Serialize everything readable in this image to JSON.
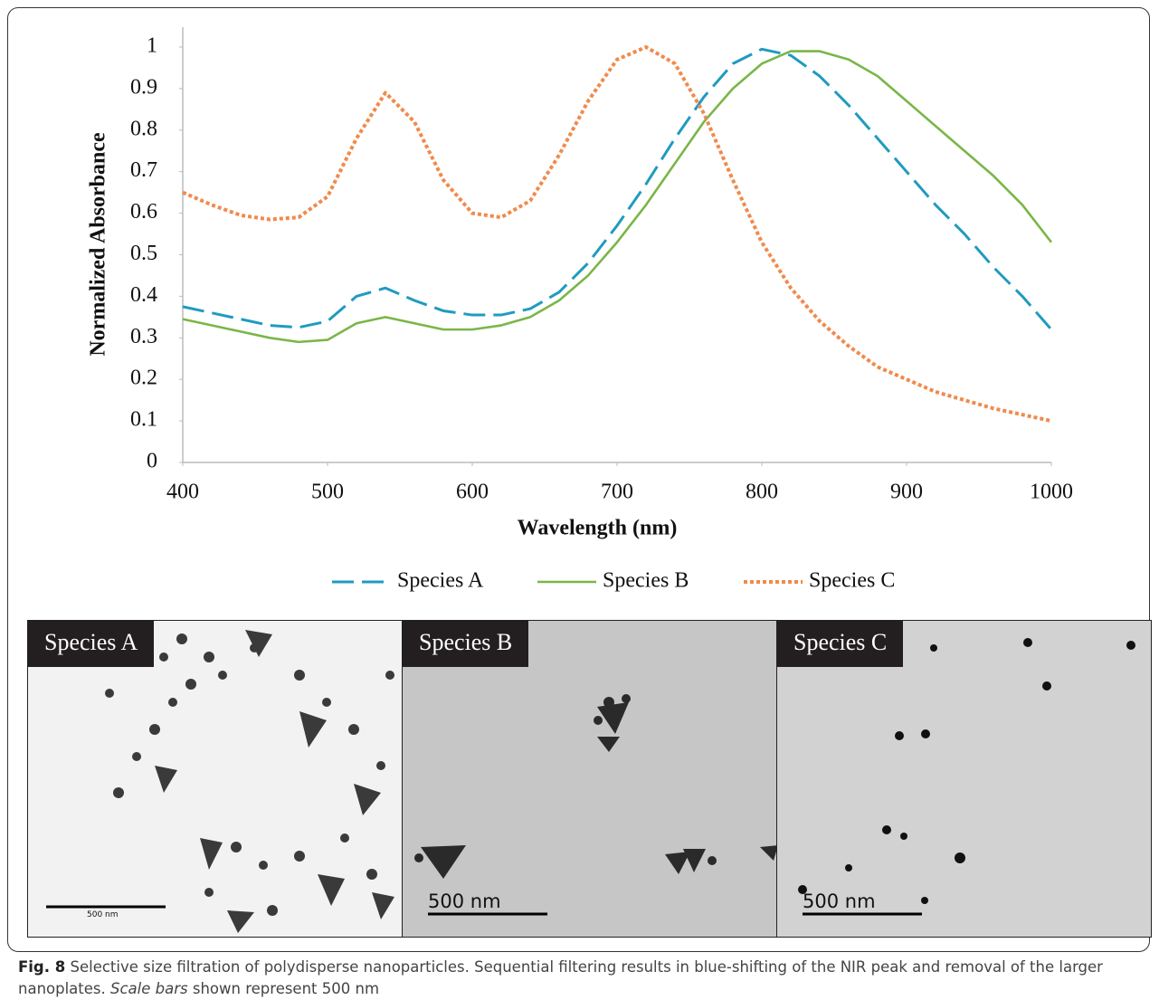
{
  "chart_data": {
    "type": "line",
    "xlabel": "Wavelength (nm)",
    "ylabel": "Normalized Absorbance",
    "x": [
      400,
      420,
      440,
      460,
      480,
      500,
      520,
      540,
      560,
      580,
      600,
      620,
      640,
      660,
      680,
      700,
      720,
      740,
      760,
      780,
      800,
      820,
      840,
      860,
      880,
      900,
      920,
      940,
      960,
      980,
      1000
    ],
    "series": [
      {
        "name": "Species A",
        "color": "#1f9bbf",
        "style": "dashed",
        "values": [
          0.375,
          0.36,
          0.345,
          0.33,
          0.325,
          0.34,
          0.4,
          0.42,
          0.39,
          0.365,
          0.355,
          0.355,
          0.37,
          0.41,
          0.48,
          0.57,
          0.67,
          0.78,
          0.88,
          0.96,
          0.995,
          0.98,
          0.93,
          0.86,
          0.78,
          0.7,
          0.62,
          0.55,
          0.47,
          0.4,
          0.32
        ]
      },
      {
        "name": "Species B",
        "color": "#7ab648",
        "style": "solid",
        "values": [
          0.345,
          0.33,
          0.315,
          0.3,
          0.29,
          0.295,
          0.335,
          0.35,
          0.335,
          0.32,
          0.32,
          0.33,
          0.35,
          0.39,
          0.45,
          0.53,
          0.62,
          0.72,
          0.82,
          0.9,
          0.96,
          0.99,
          0.99,
          0.97,
          0.93,
          0.87,
          0.81,
          0.75,
          0.69,
          0.62,
          0.53
        ]
      },
      {
        "name": "Species C",
        "color": "#f08a4b",
        "style": "dotted",
        "values": [
          0.65,
          0.62,
          0.595,
          0.585,
          0.59,
          0.64,
          0.78,
          0.89,
          0.82,
          0.68,
          0.6,
          0.59,
          0.63,
          0.74,
          0.87,
          0.97,
          1.0,
          0.96,
          0.84,
          0.68,
          0.53,
          0.42,
          0.34,
          0.28,
          0.23,
          0.2,
          0.17,
          0.15,
          0.13,
          0.115,
          0.1
        ]
      }
    ],
    "xlim": [
      400,
      1000
    ],
    "xticks": [
      400,
      500,
      600,
      700,
      800,
      900,
      1000
    ],
    "ylim": [
      0,
      1
    ],
    "yticks": [
      0,
      0.1,
      0.2,
      0.3,
      0.4,
      0.5,
      0.6,
      0.7,
      0.8,
      0.9,
      1
    ],
    "legend": "bottom"
  },
  "panels": [
    {
      "label": "Species A",
      "scale_bar": "500 nm"
    },
    {
      "label": "Species B",
      "scale_bar": "500 nm"
    },
    {
      "label": "Species C",
      "scale_bar": "500 nm"
    }
  ],
  "caption": {
    "label": "Fig. 8",
    "text_1": "Selective size filtration of polydisperse nanoparticles. Sequential filtering results in blue-shifting of the NIR peak and removal of the larger nanoplates.",
    "emphasis": "Scale bars",
    "text_2": "shown represent 500 nm"
  }
}
